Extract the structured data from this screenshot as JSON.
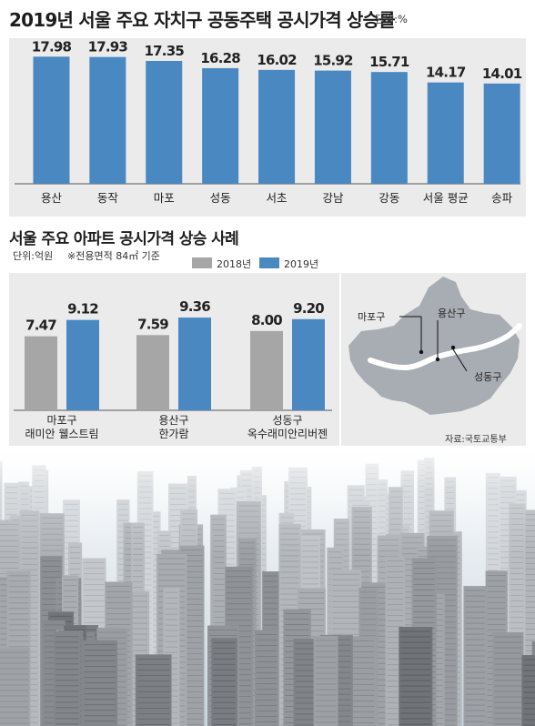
{
  "chart_data": [
    {
      "type": "bar",
      "title": "2019년 서울 주요 자치구 공동주택 공시가격 상승률",
      "unit": "단위:%",
      "categories": [
        "용산",
        "동작",
        "마포",
        "성동",
        "서초",
        "강남",
        "강동",
        "서울 평균",
        "송파"
      ],
      "values": [
        17.98,
        17.93,
        17.35,
        16.28,
        16.02,
        15.92,
        15.71,
        14.17,
        14.01
      ],
      "value_labels": [
        "17.98",
        "17.93",
        "17.35",
        "16.28",
        "16.02",
        "15.92",
        "15.71",
        "14.17",
        "14.01"
      ],
      "ylim": [
        0,
        19
      ],
      "grid": false,
      "color": "#4a88c2"
    },
    {
      "type": "bar",
      "title": "서울 주요 아파트 공시가격 상승 사례",
      "unit": "단위:억원",
      "note": "※전용면적 84㎡ 기준",
      "categories": [
        [
          "마포구",
          "래미안 웰스트림"
        ],
        [
          "용산구",
          "한가람"
        ],
        [
          "성동구",
          "옥수래미안리버젠"
        ]
      ],
      "series": [
        {
          "name": "2018년",
          "values": [
            7.47,
            7.59,
            8.0
          ],
          "labels": [
            "7.47",
            "7.59",
            "8.00"
          ],
          "color": "#a6a6a6"
        },
        {
          "name": "2019년",
          "values": [
            9.12,
            9.36,
            9.2
          ],
          "labels": [
            "9.12",
            "9.36",
            "9.20"
          ],
          "color": "#4a88c2"
        }
      ],
      "ylim": [
        0,
        10.1
      ],
      "legend_position": "top-right",
      "grid": false
    }
  ],
  "map": {
    "labels": {
      "mapo": "마포구",
      "yongsan": "용산구",
      "seongdong": "성동구"
    },
    "land_color": "#a8adb3",
    "river_color": "#ffffff"
  },
  "source": "자료:국토교통부"
}
